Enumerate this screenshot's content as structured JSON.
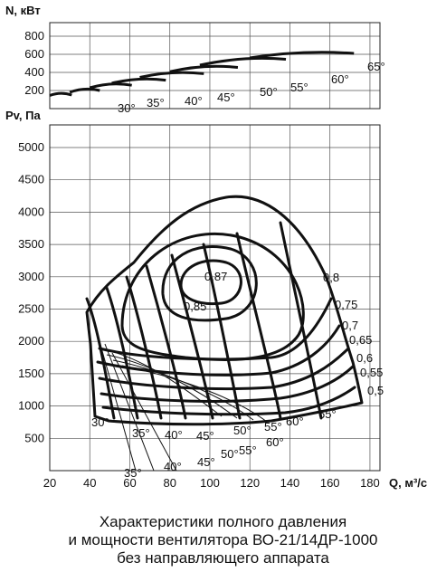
{
  "chart_data": [
    {
      "type": "line",
      "ylabel": "N, кВт",
      "yticks": [
        200,
        400,
        600,
        800
      ],
      "ylim": [
        0,
        950
      ],
      "xlim": [
        20,
        180
      ],
      "grid": true,
      "series": [
        {
          "name": "30°",
          "x": [
            20,
            31
          ],
          "y": [
            145,
            150
          ]
        },
        {
          "name": "35°",
          "x": [
            30,
            45
          ],
          "y": [
            180,
            200
          ]
        },
        {
          "name": "40°",
          "x": [
            40,
            61
          ],
          "y": [
            230,
            258
          ]
        },
        {
          "name": "45°",
          "x": [
            51,
            78
          ],
          "y": [
            280,
            314
          ]
        },
        {
          "name": "50°",
          "x": [
            65,
            97
          ],
          "y": [
            345,
            386
          ]
        },
        {
          "name": "55°",
          "x": [
            80,
            114
          ],
          "y": [
            408,
            455
          ]
        },
        {
          "name": "60°",
          "x": [
            95,
            138
          ],
          "y": [
            480,
            545
          ]
        },
        {
          "name": "65°",
          "x": [
            120,
            172
          ],
          "y": [
            560,
            610
          ]
        }
      ],
      "annotations": [
        "30°",
        "35°",
        "40°",
        "45°",
        "50°",
        "55°",
        "60°",
        "65°"
      ]
    },
    {
      "type": "line",
      "ylabel": "Pv, Па",
      "xlabel": "Q, м³/с",
      "xticks": [
        20,
        40,
        60,
        80,
        100,
        120,
        140,
        160,
        180
      ],
      "yticks": [
        500,
        1000,
        1500,
        2000,
        2500,
        3000,
        3500,
        4000,
        4500,
        5000
      ],
      "xlim": [
        20,
        185
      ],
      "ylim": [
        0,
        5350
      ],
      "grid": true,
      "series": [
        {
          "name": "30°",
          "x": [
            20,
            33,
            42,
            50
          ],
          "y": [
            2500,
            1900,
            1580,
            1300
          ]
        },
        {
          "name": "35°",
          "x": [
            25,
            40,
            55,
            65
          ],
          "y": [
            2650,
            2100,
            1700,
            1350
          ]
        },
        {
          "name": "40°",
          "x": [
            32,
            50,
            68,
            82
          ],
          "y": [
            2850,
            2350,
            1850,
            1380
          ]
        },
        {
          "name": "45°",
          "x": [
            40,
            60,
            82,
            100
          ],
          "y": [
            3100,
            2650,
            2000,
            1400
          ]
        },
        {
          "name": "50°",
          "x": [
            50,
            72,
            98,
            118
          ],
          "y": [
            3400,
            3000,
            2150,
            1420
          ]
        },
        {
          "name": "55°",
          "x": [
            63,
            88,
            115,
            138
          ],
          "y": [
            3700,
            3300,
            2300,
            1450
          ]
        },
        {
          "name": "60°",
          "x": [
            78,
            108,
            138,
            158
          ],
          "y": [
            3950,
            3500,
            2450,
            1450
          ]
        },
        {
          "name": "65°",
          "x": [
            105,
            135,
            160,
            174
          ],
          "y": [
            4060,
            3650,
            2400,
            1400
          ]
        },
        {
          "name": "0,87",
          "x": [
            70,
            85,
            100,
            85
          ],
          "y": [
            2880,
            3350,
            2980,
            2780
          ]
        },
        {
          "name": "0,85",
          "x": [
            55,
            85,
            115,
            85
          ],
          "y": [
            2750,
            3550,
            2900,
            2450
          ]
        },
        {
          "name": "0,8",
          "x": [
            40,
            85,
            160,
            85
          ],
          "y": [
            2500,
            3800,
            2850,
            1850
          ]
        },
        {
          "name": "0,75",
          "x": [
            33,
            100,
            168
          ],
          "y": [
            2050,
            2300,
            2450
          ]
        },
        {
          "name": "0,7",
          "x": [
            33,
            100,
            170
          ],
          "y": [
            1800,
            2050,
            2200
          ]
        },
        {
          "name": "0,65",
          "x": [
            35,
            100,
            172
          ],
          "y": [
            1600,
            1800,
            2000
          ]
        },
        {
          "name": "0,6",
          "x": [
            35,
            100,
            172
          ],
          "y": [
            1400,
            1600,
            1800
          ]
        },
        {
          "name": "0,55",
          "x": [
            36,
            100,
            172
          ],
          "y": [
            1250,
            1400,
            1600
          ]
        },
        {
          "name": "0,5",
          "x": [
            36,
            100,
            172
          ],
          "y": [
            1080,
            1200,
            1400
          ]
        }
      ],
      "annotations": [
        "0,87",
        "0,85",
        "0,8",
        "0,75",
        "0,7",
        "0,65",
        "0,6",
        "0,55",
        "0,5",
        "30°",
        "35°",
        "40°",
        "45°",
        "50°",
        "55°",
        "60°",
        "65°",
        "35°",
        "40°",
        "45°",
        "50°",
        "55°",
        "60°",
        "65°"
      ]
    }
  ],
  "caption": [
    "Характеристики полного давления",
    "и мощности вентилятора ВО-21/14ДР-1000",
    "без направляющего аппарата"
  ]
}
